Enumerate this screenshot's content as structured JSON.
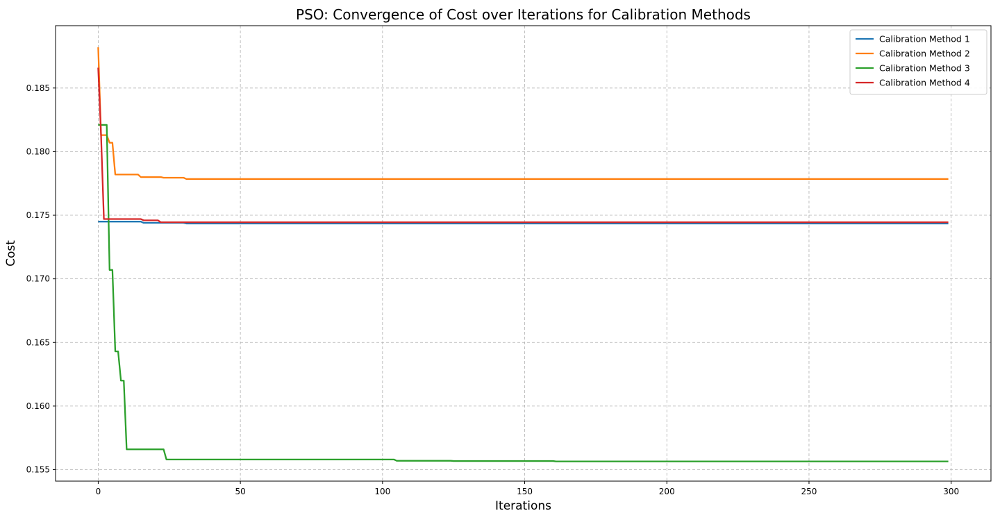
{
  "chart_data": {
    "type": "line",
    "title": "PSO: Convergence of Cost over Iterations for Calibration Methods",
    "xlabel": "Iterations",
    "ylabel": "Cost",
    "xlim": [
      -15,
      314
    ],
    "ylim": [
      0.1541,
      0.1899
    ],
    "xticks": [
      0,
      50,
      100,
      150,
      200,
      250,
      300
    ],
    "xtick_labels": [
      "0",
      "50",
      "100",
      "150",
      "200",
      "250",
      "300"
    ],
    "yticks": [
      0.155,
      0.16,
      0.165,
      0.17,
      0.175,
      0.18,
      0.185
    ],
    "ytick_labels": [
      "0.155",
      "0.160",
      "0.165",
      "0.170",
      "0.175",
      "0.180",
      "0.185"
    ],
    "grid": true,
    "legend_position": "top-right",
    "series": [
      {
        "name": "Calibration Method 1",
        "color": "#1f77b4",
        "points": [
          [
            0,
            0.1745
          ],
          [
            15,
            0.1745
          ],
          [
            16,
            0.1744
          ],
          [
            30,
            0.1744
          ],
          [
            31,
            0.17435
          ],
          [
            299,
            0.17435
          ]
        ]
      },
      {
        "name": "Calibration Method 2",
        "color": "#ff7f0e",
        "points": [
          [
            0,
            0.1882
          ],
          [
            1,
            0.1813
          ],
          [
            3,
            0.1813
          ],
          [
            4,
            0.1807
          ],
          [
            5,
            0.1807
          ],
          [
            6,
            0.1782
          ],
          [
            14,
            0.1782
          ],
          [
            15,
            0.178
          ],
          [
            22,
            0.178
          ],
          [
            23,
            0.17795
          ],
          [
            30,
            0.17795
          ],
          [
            31,
            0.17785
          ],
          [
            299,
            0.17785
          ]
        ]
      },
      {
        "name": "Calibration Method 3",
        "color": "#2ca02c",
        "points": [
          [
            0,
            0.1821
          ],
          [
            3,
            0.1821
          ],
          [
            4,
            0.1707
          ],
          [
            5,
            0.1707
          ],
          [
            6,
            0.1643
          ],
          [
            7,
            0.1643
          ],
          [
            8,
            0.162
          ],
          [
            9,
            0.162
          ],
          [
            10,
            0.1566
          ],
          [
            23,
            0.1566
          ],
          [
            24,
            0.1558
          ],
          [
            104,
            0.1558
          ],
          [
            105,
            0.1557
          ],
          [
            124,
            0.1557
          ],
          [
            125,
            0.15568
          ],
          [
            160,
            0.15568
          ],
          [
            161,
            0.15565
          ],
          [
            299,
            0.15565
          ]
        ]
      },
      {
        "name": "Calibration Method 4",
        "color": "#d62728",
        "points": [
          [
            0,
            0.1866
          ],
          [
            1,
            0.1813
          ],
          [
            2,
            0.1747
          ],
          [
            15,
            0.1747
          ],
          [
            16,
            0.1746
          ],
          [
            21,
            0.1746
          ],
          [
            22,
            0.17445
          ],
          [
            299,
            0.17445
          ]
        ]
      }
    ]
  }
}
